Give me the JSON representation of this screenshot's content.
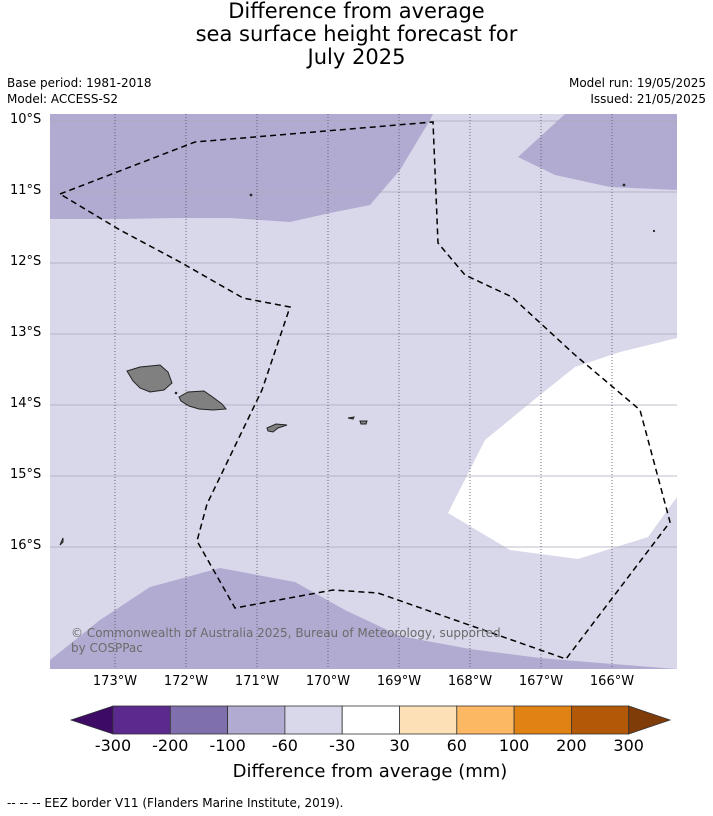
{
  "title": {
    "line1": "Difference from average",
    "line2": "sea surface height forecast for",
    "line3": "July 2025"
  },
  "meta": {
    "base_period": "Base period: 1981-2018",
    "model": "Model: ACCESS-S2",
    "model_run": "Model run: 19/05/2025",
    "issued": "Issued: 21/05/2025"
  },
  "map": {
    "lat_labels": [
      "10°S",
      "11°S",
      "12°S",
      "13°S",
      "14°S",
      "15°S",
      "16°S"
    ],
    "lon_labels": [
      "173°W",
      "172°W",
      "171°W",
      "170°W",
      "169°W",
      "168°W",
      "167°W",
      "166°W"
    ],
    "copyright": "© Commonwealth of Australia 2025, Bureau of Meteorology, supported by COSPPac",
    "colors": {
      "background_band": "#d8d8ea",
      "band_-100_-60": "#b1abd2",
      "band_-30_30": "#ffffff",
      "land": "#808080"
    }
  },
  "colorbar": {
    "tick_labels": [
      "-300",
      "-200",
      "-100",
      "-60",
      "-30",
      "30",
      "60",
      "100",
      "200",
      "300"
    ],
    "colors": [
      "#3d0a66",
      "#5c2a8f",
      "#7f70ad",
      "#b1abd2",
      "#d8d8ea",
      "#ffffff",
      "#fee0b6",
      "#fdb863",
      "#e08214",
      "#b35806",
      "#7f3b08"
    ],
    "title": "Difference from average (mm)"
  },
  "legend_note": "--  --  -- EEZ border V11 (Flanders Marine Institute, 2019)."
}
